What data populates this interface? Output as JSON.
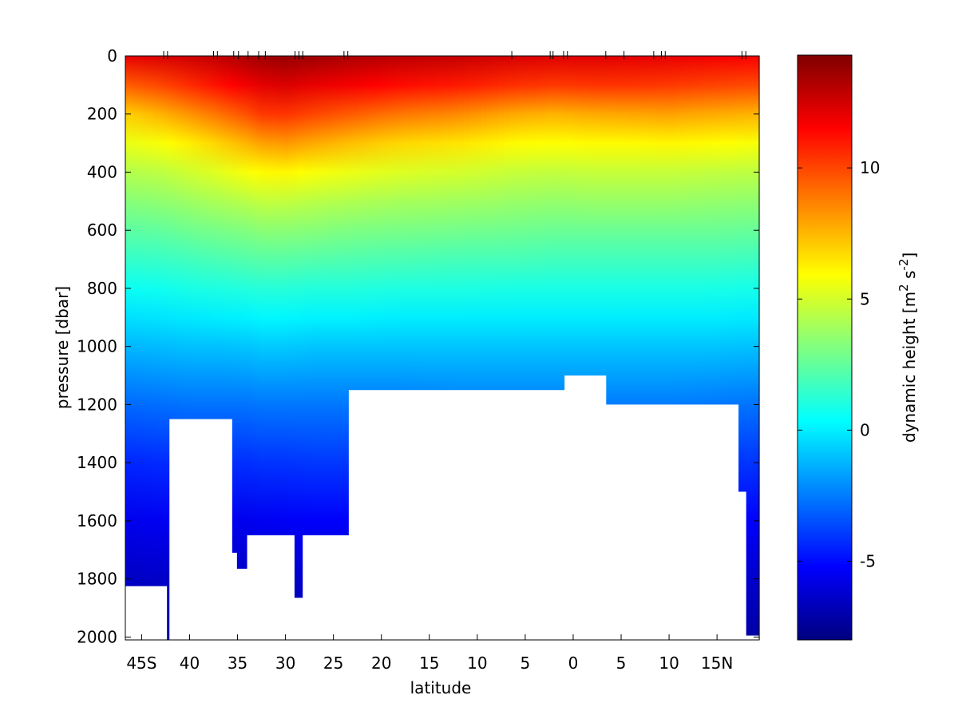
{
  "chart_data": {
    "type": "section",
    "xlabel": "latitude",
    "ylabel": "pressure [dbar]",
    "colorbar_label": [
      "dynamic height [m",
      "2",
      " s",
      "-2",
      "]"
    ],
    "xlim": [
      -46.7,
      19.4
    ],
    "ylim": [
      0,
      2010
    ],
    "y_reversed": true,
    "xticks": [
      {
        "value": -45,
        "label": "45S"
      },
      {
        "value": -40,
        "label": "40"
      },
      {
        "value": -35,
        "label": "35"
      },
      {
        "value": -30,
        "label": "30"
      },
      {
        "value": -25,
        "label": "25"
      },
      {
        "value": -20,
        "label": "20"
      },
      {
        "value": -15,
        "label": "15"
      },
      {
        "value": -10,
        "label": "10"
      },
      {
        "value": -5,
        "label": "5"
      },
      0,
      5,
      10,
      {
        "value": 15,
        "label": "15N"
      }
    ],
    "yticks": [
      0,
      200,
      400,
      600,
      800,
      1000,
      1200,
      1400,
      1600,
      1800,
      2000
    ],
    "clim": [
      -8,
      14.3
    ],
    "cticks": [
      -5,
      0,
      5,
      10
    ],
    "colormap": "jet",
    "stations": [
      -42.7,
      -42.3,
      -37.5,
      -37.1,
      -35.4,
      -34.9,
      -33.9,
      -32.8,
      -32.1,
      -29.0,
      -28.6,
      -28.2,
      -23.9,
      -23.5,
      -6.4,
      -2.4,
      -2.1,
      -1.0,
      -0.6,
      3.4,
      5.3,
      8.4,
      9.2,
      9.6,
      17.6,
      18.0
    ],
    "x": [
      -46.5,
      -43,
      -40,
      -37,
      -34,
      -32.5,
      -30,
      -27,
      -23,
      -18,
      -12,
      -6,
      -2,
      2,
      6,
      10,
      14,
      19.2
    ],
    "pressure": [
      0,
      100,
      200,
      300,
      400,
      500,
      600,
      700,
      800,
      900,
      1000,
      1200,
      1400,
      1600,
      1800,
      2000
    ],
    "z": [
      [
        12,
        9.5,
        7,
        5.5,
        4.3,
        3.3,
        2.4,
        1.5,
        0.6,
        -0.3,
        -1.2,
        -2.9,
        -4.4,
        -5.6,
        -6.5,
        -7.3
      ],
      [
        12.3,
        10,
        7.6,
        5.8,
        4.5,
        3.5,
        2.5,
        1.6,
        0.7,
        -0.2,
        -1.1,
        -2.8,
        -4.3,
        -5.5,
        -6.4,
        -7.2
      ],
      [
        12.6,
        10.6,
        8.3,
        6.3,
        4.9,
        3.8,
        2.8,
        1.8,
        0.9,
        -0.1,
        -1,
        -2.7,
        -4.2,
        -5.5,
        -6.4,
        -7.2
      ],
      [
        12.9,
        11.2,
        9,
        6.9,
        5.3,
        4.1,
        3,
        2,
        1,
        0,
        -1,
        -2.7,
        -4.2,
        -5.5,
        -6.4,
        -7.2
      ],
      [
        13.4,
        11.8,
        9.8,
        7.6,
        5.8,
        4.4,
        3.2,
        2.2,
        1.1,
        0.1,
        -0.9,
        -2.7,
        -4.2,
        -5.6,
        -6.5,
        -7.3
      ],
      [
        13.6,
        12.1,
        10.3,
        8,
        6,
        4.6,
        3.4,
        2.3,
        1.2,
        0.2,
        -0.8,
        -2.6,
        -4.1,
        -5.5,
        -6.4,
        -7.3
      ],
      [
        13.8,
        12.3,
        10.4,
        8.2,
        6.1,
        4.6,
        3.4,
        2.3,
        1.2,
        0.2,
        -0.8,
        -2.6,
        -4.1,
        -5.4,
        -6.4,
        -7.3
      ],
      [
        13.6,
        12,
        10,
        7.8,
        5.8,
        4.4,
        3.3,
        2.2,
        1.1,
        0.1,
        -0.9,
        -2.6,
        -4,
        -5.3,
        -6.3,
        -7.2
      ],
      [
        13.3,
        11.7,
        9.5,
        7.3,
        5.5,
        4.2,
        3.1,
        2.1,
        1.1,
        0.1,
        -0.9,
        -2.6,
        -4,
        -5.3,
        -6.3,
        -7.2
      ],
      [
        13,
        11.3,
        8.9,
        6.8,
        5.2,
        4,
        3,
        2,
        1,
        0,
        -0.9,
        -2.6,
        -4,
        -5.2,
        -6.2,
        -7.1
      ],
      [
        12.8,
        11,
        8.5,
        6.5,
        5,
        3.9,
        2.9,
        1.9,
        1,
        0,
        -0.9,
        -2.5,
        -3.9,
        -5.2,
        -6.2,
        -7.1
      ],
      [
        12.4,
        10.5,
        7.8,
        6,
        4.7,
        3.7,
        2.8,
        1.9,
        0.9,
        0,
        -0.9,
        -2.5,
        -3.9,
        -5.1,
        -6.1,
        -7
      ],
      [
        12.2,
        10.3,
        7.6,
        5.9,
        4.6,
        3.6,
        2.7,
        1.8,
        0.9,
        0,
        -0.9,
        -2.5,
        -3.9,
        -5.1,
        -6.1,
        -7
      ],
      [
        12.2,
        10.4,
        7.8,
        6,
        4.7,
        3.7,
        2.7,
        1.8,
        0.9,
        0,
        -0.9,
        -2.5,
        -3.9,
        -5.1,
        -6.1,
        -7
      ],
      [
        12.1,
        10.4,
        7.9,
        6,
        4.7,
        3.7,
        2.7,
        1.8,
        0.9,
        0,
        -0.9,
        -2.5,
        -3.9,
        -5.1,
        -6.1,
        -7
      ],
      [
        12,
        10.3,
        8,
        6.1,
        4.7,
        3.7,
        2.7,
        1.8,
        0.9,
        0,
        -0.9,
        -2.5,
        -3.9,
        -5.1,
        -6.1,
        -7
      ],
      [
        11.8,
        10.1,
        7.8,
        6,
        4.6,
        3.6,
        2.7,
        1.8,
        0.9,
        0,
        -0.9,
        -2.6,
        -4,
        -5.2,
        -6.2,
        -7.1
      ],
      [
        11.6,
        9.9,
        7.6,
        5.8,
        4.5,
        3.5,
        2.6,
        1.7,
        0.8,
        -0.1,
        -1,
        -2.7,
        -4.1,
        -5.3,
        -6.3,
        -7.2
      ]
    ],
    "bottom": {
      "x0": [
        -46.7,
        -42.1,
        -35.6,
        -35.1,
        -34.0,
        -29.1,
        -28.2,
        -23.4,
        -0.9,
        3.4,
        17.2,
        18.0
      ],
      "x1": [
        -42.4,
        -35.6,
        -35.1,
        -34.0,
        -29.1,
        -28.2,
        -23.4,
        -0.9,
        3.4,
        17.2,
        18.0,
        19.4
      ],
      "depth": [
        1825,
        1250,
        1710,
        1765,
        1650,
        1865,
        1650,
        1150,
        1100,
        1200,
        1500,
        1995
      ]
    }
  }
}
